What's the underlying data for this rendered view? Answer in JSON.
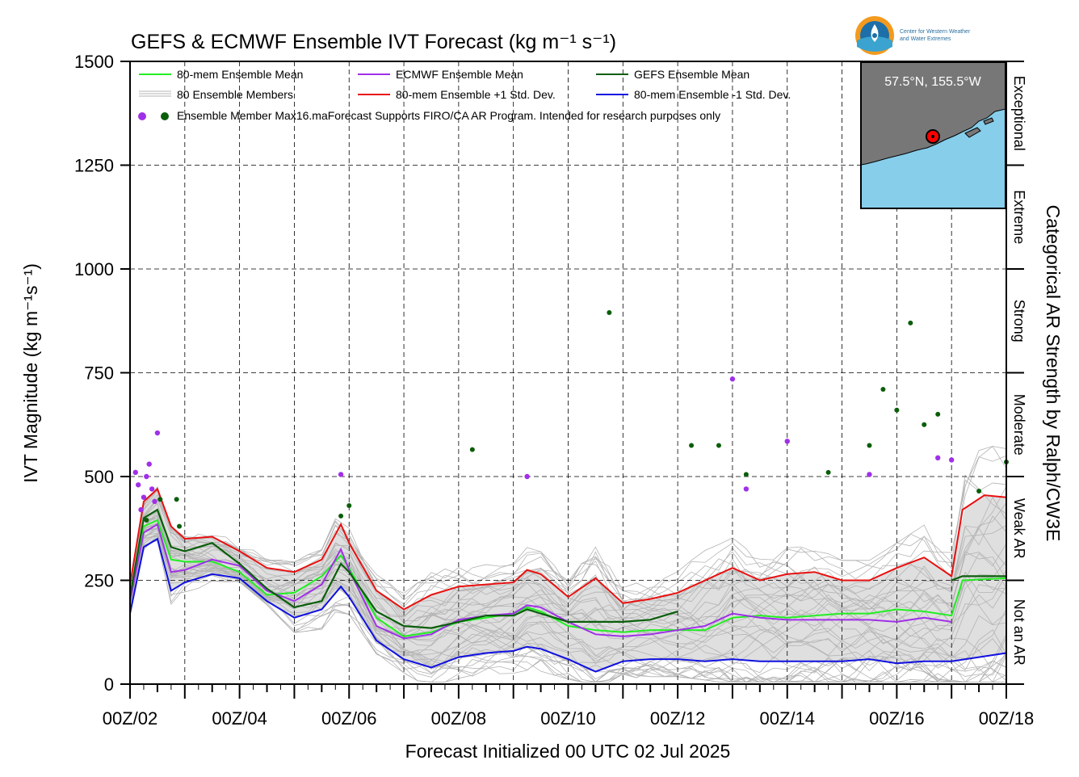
{
  "header": {
    "title": "GEFS & ECMWF Ensemble IVT Forecast (kg m⁻¹ s⁻¹)",
    "logo_text_line1": "Center for Western Weather",
    "logo_text_line2": "and Water Extremes"
  },
  "axes": {
    "ylabel": "IVT Magnitude (kg m⁻¹s⁻¹)",
    "xlabel": "Forecast Initialized 00 UTC 02 Jul 2025",
    "right_label": "Categorical AR Strength by Ralph/CW3E",
    "y_ticks": [
      "0",
      "250",
      "500",
      "750",
      "1000",
      "1250",
      "1500"
    ],
    "x_ticks": [
      "00Z/02",
      "00Z/04",
      "00Z/06",
      "00Z/08",
      "00Z/10",
      "00Z/12",
      "00Z/14",
      "00Z/16",
      "00Z/18"
    ]
  },
  "categories": [
    {
      "label": "Not an AR",
      "from": 0,
      "to": 250
    },
    {
      "label": "Weak AR",
      "from": 250,
      "to": 500
    },
    {
      "label": "Moderate",
      "from": 500,
      "to": 750
    },
    {
      "label": "Strong",
      "from": 750,
      "to": 1000
    },
    {
      "label": "Extreme",
      "from": 1000,
      "to": 1250
    },
    {
      "label": "Exceptional",
      "from": 1250,
      "to": 1500
    }
  ],
  "legend": {
    "mean80": "80-mem Ensemble Mean",
    "members": "80 Ensemble Members",
    "ecmwf_mean": "ECMWF Ensemble Mean",
    "plus1": "80-mem Ensemble +1 Std. Dev.",
    "gefs_mean": "GEFS Ensemble Mean",
    "minus1": "80-mem Ensemble -1 Std. Dev.",
    "max_note": "Ensemble Member Max16.maForecast Supports FIRO/CA AR Program. Intended for research purposes only"
  },
  "inset": {
    "location": "57.5°N, 155.5°W"
  },
  "colors": {
    "mean80": "#22ee22",
    "ecmwf": "#a030e8",
    "gefs": "#0a5e0a",
    "plus1": "#e81010",
    "minus1": "#1010e0",
    "member": "#b4b4b4",
    "shade": "#d9d9d9",
    "ocean": "#87ceeb",
    "land": "#777777"
  },
  "chart_data": {
    "type": "line",
    "x_unit": "day of July 2025 (UTC)",
    "xlim": [
      2,
      18
    ],
    "ylim": [
      0,
      1500
    ],
    "grid": true,
    "series": [
      {
        "name": "80-mem Ensemble Mean",
        "x": [
          2,
          2.25,
          2.5,
          2.75,
          3,
          3.5,
          4,
          4.5,
          5,
          5.5,
          5.85,
          6,
          6.5,
          7,
          7.5,
          8,
          8.5,
          9,
          9.25,
          9.5,
          10,
          10.5,
          11,
          11.5,
          12,
          12.5,
          13,
          13.5,
          14,
          14.5,
          15,
          15.5,
          16,
          16.5,
          17,
          17.2,
          18
        ],
        "y": [
          200,
          380,
          395,
          300,
          295,
          295,
          270,
          215,
          220,
          260,
          310,
          280,
          160,
          115,
          125,
          150,
          160,
          170,
          185,
          175,
          140,
          130,
          125,
          130,
          130,
          130,
          160,
          165,
          160,
          165,
          170,
          170,
          180,
          175,
          165,
          250,
          255
        ]
      },
      {
        "name": "ECMWF Ensemble Mean",
        "x": [
          2,
          2.25,
          2.5,
          2.75,
          3,
          3.5,
          4,
          4.5,
          5,
          5.5,
          5.85,
          6,
          6.5,
          7,
          7.5,
          8,
          8.5,
          9,
          9.25,
          9.5,
          10,
          10.5,
          11,
          11.5,
          12,
          12.5,
          13,
          13.5,
          14,
          14.5,
          15,
          15.5,
          16,
          16.5,
          17
        ],
        "y": [
          200,
          365,
          385,
          270,
          275,
          300,
          285,
          225,
          200,
          240,
          325,
          275,
          140,
          110,
          120,
          155,
          165,
          170,
          190,
          185,
          150,
          120,
          115,
          120,
          130,
          140,
          170,
          160,
          155,
          155,
          155,
          155,
          150,
          160,
          150
        ]
      },
      {
        "name": "GEFS Ensemble Mean",
        "x": [
          2,
          2.25,
          2.5,
          2.75,
          3,
          3.5,
          4,
          4.5,
          5,
          5.5,
          5.85,
          6,
          6.5,
          7,
          7.5,
          8,
          8.5,
          9,
          9.25,
          9.5,
          10,
          10.5,
          11,
          11.5,
          12,
          17,
          17.2,
          18
        ],
        "y": [
          210,
          400,
          420,
          330,
          320,
          340,
          290,
          230,
          185,
          200,
          290,
          270,
          175,
          140,
          135,
          150,
          165,
          165,
          180,
          170,
          150,
          150,
          150,
          155,
          175,
          250,
          260,
          260
        ]
      },
      {
        "name": "80-mem Ensemble +1 Std. Dev.",
        "x": [
          2,
          2.25,
          2.5,
          2.75,
          3,
          3.5,
          4,
          4.5,
          5,
          5.5,
          5.85,
          6,
          6.5,
          7,
          7.5,
          8,
          8.5,
          9,
          9.25,
          9.5,
          10,
          10.5,
          11,
          11.5,
          12,
          12.5,
          13,
          13.5,
          14,
          14.5,
          15,
          15.5,
          16,
          16.5,
          17,
          17.2,
          17.6,
          18
        ],
        "y": [
          240,
          440,
          470,
          380,
          350,
          355,
          320,
          280,
          270,
          300,
          385,
          340,
          225,
          180,
          215,
          235,
          240,
          245,
          275,
          265,
          210,
          255,
          195,
          205,
          220,
          250,
          280,
          250,
          265,
          270,
          250,
          250,
          280,
          305,
          260,
          420,
          455,
          450
        ]
      },
      {
        "name": "80-mem Ensemble -1 Std. Dev.",
        "x": [
          2,
          2.25,
          2.5,
          2.75,
          3,
          3.5,
          4,
          4.5,
          5,
          5.5,
          5.85,
          6,
          6.5,
          7,
          7.5,
          8,
          8.5,
          9,
          9.25,
          9.5,
          10,
          10.5,
          11,
          11.5,
          12,
          12.5,
          13,
          13.5,
          14,
          14.5,
          15,
          15.5,
          16,
          16.5,
          17,
          17.5,
          18
        ],
        "y": [
          170,
          330,
          350,
          225,
          245,
          265,
          255,
          200,
          160,
          180,
          235,
          210,
          105,
          60,
          40,
          65,
          75,
          80,
          90,
          85,
          60,
          30,
          55,
          60,
          60,
          55,
          60,
          55,
          55,
          55,
          55,
          60,
          50,
          55,
          55,
          65,
          75
        ]
      }
    ],
    "ecmwf_member_max_points": {
      "x": [
        2.1,
        2.15,
        2.2,
        2.25,
        2.3,
        2.35,
        2.4,
        2.45,
        2.5,
        5.85,
        9.25,
        13,
        13.25,
        14,
        15.5,
        16.75,
        17
      ],
      "y": [
        510,
        480,
        420,
        450,
        500,
        530,
        470,
        440,
        605,
        505,
        500,
        735,
        470,
        585,
        505,
        545,
        540
      ]
    },
    "gefs_member_max_points": {
      "x": [
        2.3,
        2.55,
        2.85,
        2.9,
        5.85,
        6,
        8.25,
        10.75,
        12.25,
        12.75,
        13.25,
        14.75,
        15.5,
        15.75,
        16,
        16.25,
        16.5,
        16.75,
        17.5,
        18
      ],
      "y": [
        395,
        445,
        445,
        380,
        405,
        430,
        565,
        895,
        575,
        575,
        505,
        510,
        575,
        710,
        660,
        870,
        625,
        650,
        465,
        535
      ]
    }
  }
}
